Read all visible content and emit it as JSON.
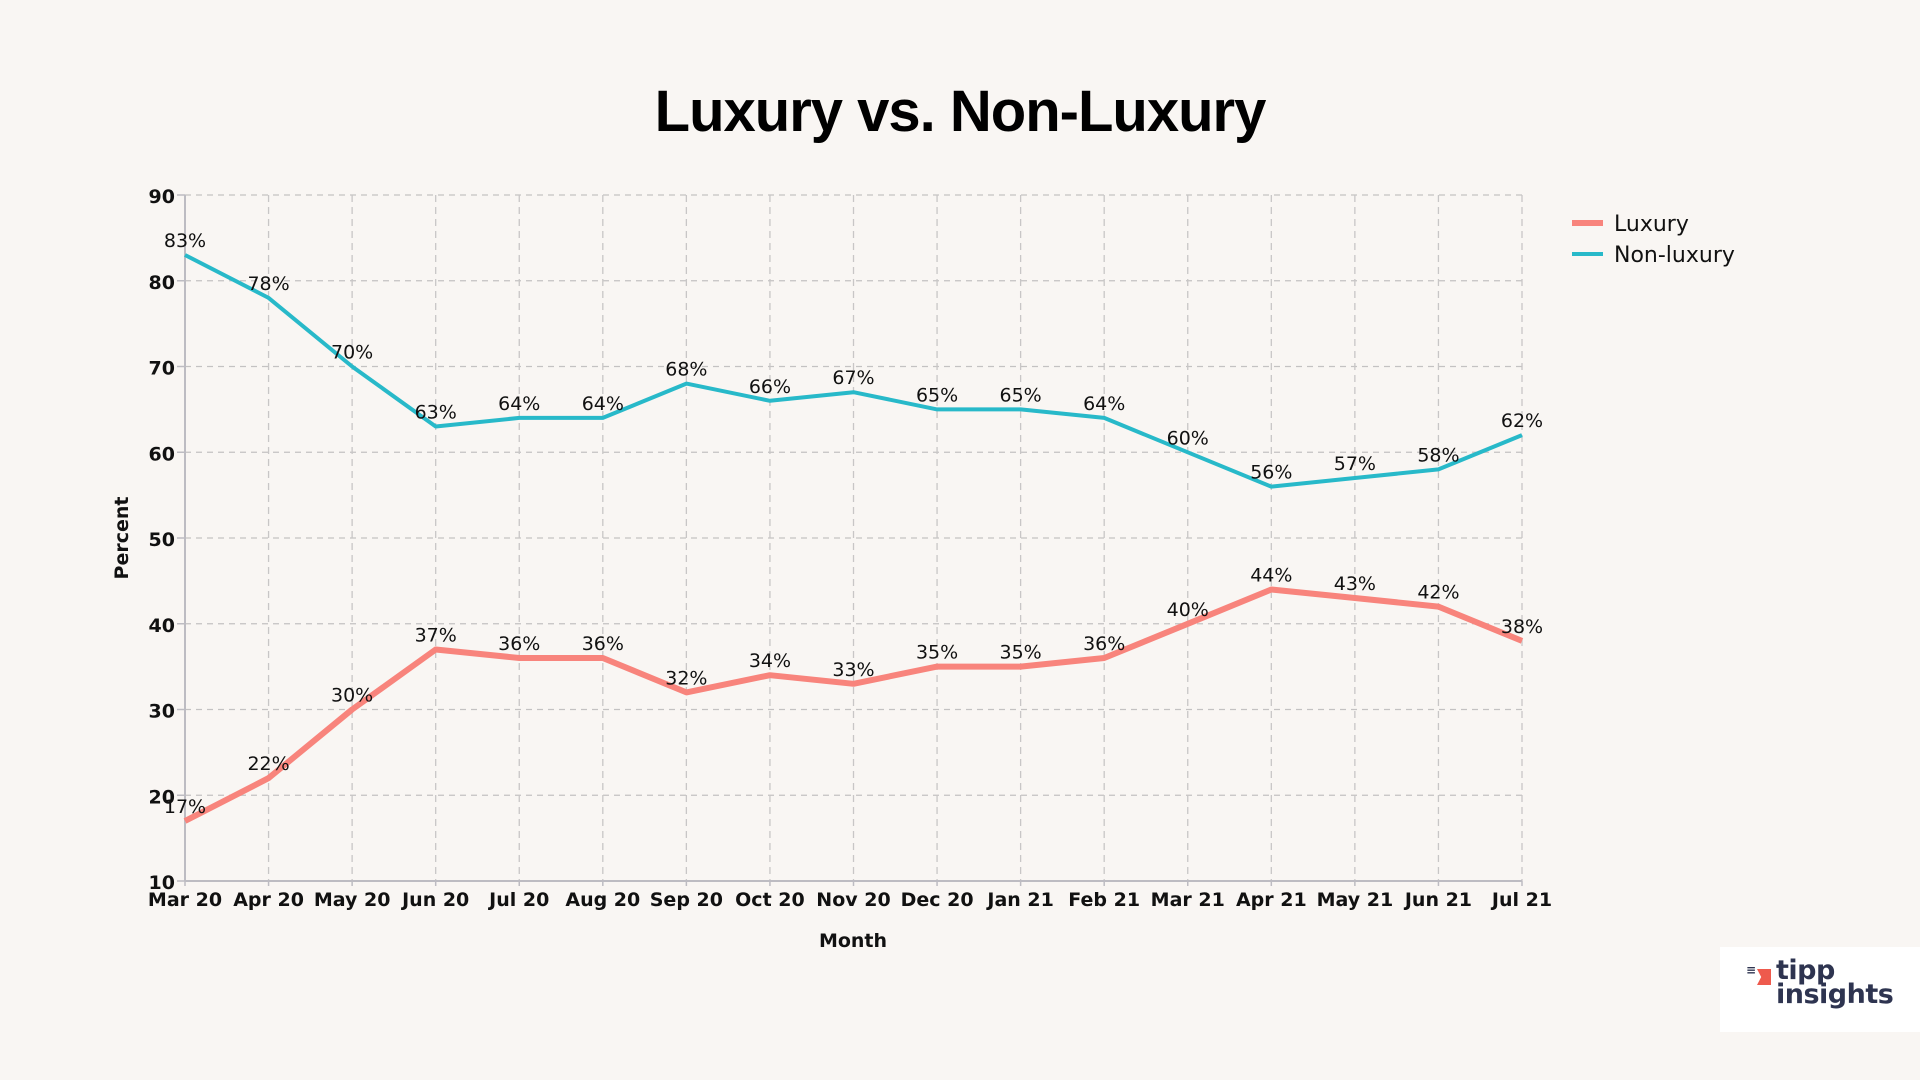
{
  "chart_data": {
    "type": "line",
    "title": "Luxury vs. Non-Luxury",
    "xlabel": "Month",
    "ylabel": "Percent",
    "ylim": [
      10,
      90
    ],
    "yticks": [
      10,
      20,
      30,
      40,
      50,
      60,
      70,
      80,
      90
    ],
    "grid": true,
    "legend_position": "top-right (outside plot)",
    "categories": [
      "Mar 20",
      "Apr 20",
      "May 20",
      "Jun 20",
      "Jul 20",
      "Aug 20",
      "Sep 20",
      "Oct 20",
      "Nov 20",
      "Dec 20",
      "Jan 21",
      "Feb 21",
      "Mar 21",
      "Apr 21",
      "May 21",
      "Jun 21",
      "Jul 21"
    ],
    "series": [
      {
        "name": "Luxury",
        "color": "#f8847c",
        "values": [
          17,
          22,
          30,
          37,
          36,
          36,
          32,
          34,
          33,
          35,
          35,
          36,
          40,
          44,
          43,
          42,
          38
        ],
        "labels": [
          "17%",
          "22%",
          "30%",
          "37%",
          "36%",
          "36%",
          "32%",
          "34%",
          "33%",
          "35%",
          "35%",
          "36%",
          "40%",
          "44%",
          "43%",
          "42%",
          "38%"
        ]
      },
      {
        "name": "Non-luxury",
        "color": "#28b9c9",
        "values": [
          83,
          78,
          70,
          63,
          64,
          64,
          68,
          66,
          67,
          65,
          65,
          64,
          60,
          56,
          57,
          58,
          62
        ],
        "labels": [
          "83%",
          "78%",
          "70%",
          "63%",
          "64%",
          "64%",
          "68%",
          "66%",
          "67%",
          "65%",
          "65%",
          "64%",
          "60%",
          "56%",
          "57%",
          "58%",
          "62%"
        ]
      }
    ]
  },
  "logo": {
    "line1": "tipp",
    "line2": "insights",
    "rays": "⁼"
  }
}
